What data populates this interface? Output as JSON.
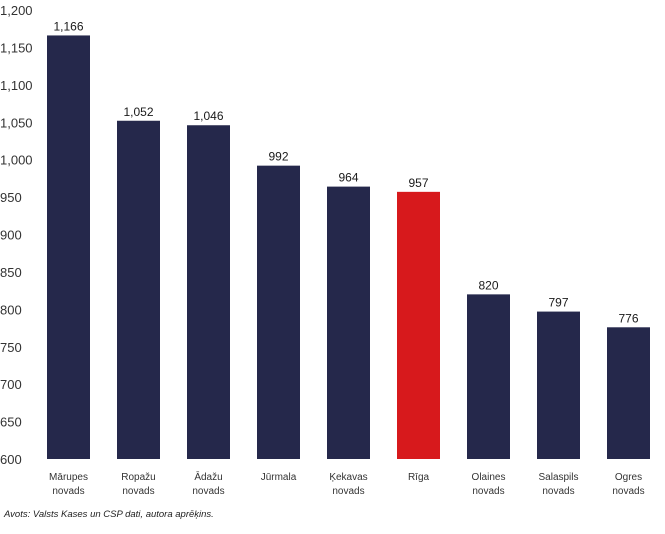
{
  "chart_data": {
    "type": "bar",
    "title": "",
    "xlabel": "",
    "ylabel": "",
    "categories": [
      [
        "Mārupes",
        "novads"
      ],
      [
        "Ropažu",
        "novads"
      ],
      [
        "Ādažu",
        "novads"
      ],
      [
        "Jūrmala"
      ],
      [
        "Ķekavas",
        "novads"
      ],
      [
        "Rīga"
      ],
      [
        "Olaines",
        "novads"
      ],
      [
        "Salaspils",
        "novads"
      ],
      [
        "Ogres",
        "novads"
      ]
    ],
    "values": [
      1166,
      1052,
      1046,
      992,
      964,
      957,
      820,
      797,
      776
    ],
    "data_labels": [
      "1,166",
      "1,052",
      "1,046",
      "992",
      "964",
      "957",
      "820",
      "797",
      "776"
    ],
    "ylim": [
      600,
      1200
    ],
    "yticks": [
      600,
      650,
      700,
      750,
      800,
      850,
      900,
      950,
      1000,
      1050,
      1100,
      1150,
      1200
    ],
    "ytick_labels": [
      "600",
      "650",
      "700",
      "750",
      "800",
      "850",
      "900",
      "950",
      "1,000",
      "1,050",
      "1,100",
      "1,150",
      "1,200"
    ],
    "grid": false,
    "legend": "none",
    "colors": {
      "default": "#25284b",
      "highlight": "#d7191c"
    },
    "highlight_index": 5
  },
  "source": "Avots: Valsts Kases un CSP dati, autora aprēķins."
}
